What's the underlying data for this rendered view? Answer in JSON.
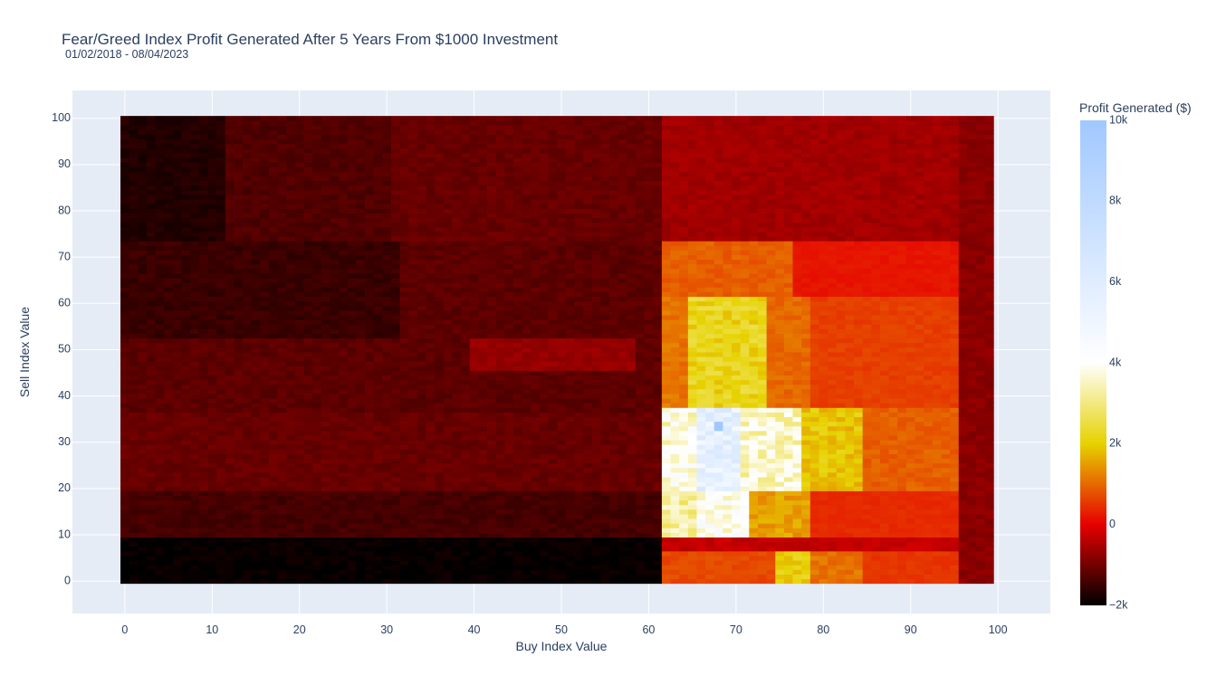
{
  "chart_data": {
    "type": "heatmap",
    "title": "Fear/Greed Index Profit Generated After 5 Years From $1000 Investment",
    "subtitle": "01/02/2018 - 08/04/2023",
    "xlabel": "Buy Index Value",
    "ylabel": "Sell Index Value",
    "xlim": [
      -6,
      106
    ],
    "ylim": [
      -7,
      106
    ],
    "x_ticks": [
      0,
      10,
      20,
      30,
      40,
      50,
      60,
      70,
      80,
      90,
      100
    ],
    "y_ticks": [
      0,
      10,
      20,
      30,
      40,
      50,
      60,
      70,
      80,
      90,
      100
    ],
    "grid": true,
    "cell_x_range": [
      0,
      99
    ],
    "cell_y_range": [
      0,
      100
    ],
    "colorbar": {
      "title": "Profit Generated ($)",
      "min": -2000,
      "max": 10000,
      "ticks": [
        -2000,
        0,
        2000,
        4000,
        6000,
        8000,
        10000
      ],
      "tick_labels": [
        "−2k",
        "0",
        "2k",
        "4k",
        "6k",
        "8k",
        "10k"
      ],
      "colorscale": [
        [
          0,
          "#000000"
        ],
        [
          0.1667,
          "#e60000"
        ],
        [
          0.3333,
          "#e6d200"
        ],
        [
          0.5,
          "#ffffff"
        ],
        [
          1,
          "#a0c8ff"
        ]
      ]
    },
    "regions": [
      {
        "x": [
          0,
          11
        ],
        "y": [
          74,
          100
        ],
        "value": -1700
      },
      {
        "x": [
          12,
          30
        ],
        "y": [
          74,
          100
        ],
        "value": -1300
      },
      {
        "x": [
          31,
          61
        ],
        "y": [
          74,
          100
        ],
        "value": -1100
      },
      {
        "x": [
          0,
          31
        ],
        "y": [
          53,
          73
        ],
        "value": -1500
      },
      {
        "x": [
          32,
          61
        ],
        "y": [
          53,
          73
        ],
        "value": -1200
      },
      {
        "x": [
          0,
          61
        ],
        "y": [
          37,
          52
        ],
        "value": -1200
      },
      {
        "x": [
          40,
          58
        ],
        "y": [
          46,
          52
        ],
        "value": -700
      },
      {
        "x": [
          0,
          61
        ],
        "y": [
          20,
          36
        ],
        "value": -1100
      },
      {
        "x": [
          0,
          61
        ],
        "y": [
          10,
          19
        ],
        "value": -1400
      },
      {
        "x": [
          0,
          61
        ],
        "y": [
          0,
          9
        ],
        "value": -1950
      },
      {
        "x": [
          62,
          95
        ],
        "y": [
          74,
          100
        ],
        "value": -600
      },
      {
        "x": [
          62,
          76
        ],
        "y": [
          62,
          73
        ],
        "value": 900
      },
      {
        "x": [
          77,
          95
        ],
        "y": [
          62,
          73
        ],
        "value": 200
      },
      {
        "x": [
          62,
          64
        ],
        "y": [
          38,
          61
        ],
        "value": 1100
      },
      {
        "x": [
          65,
          73
        ],
        "y": [
          38,
          61
        ],
        "value": 2200
      },
      {
        "x": [
          74,
          78
        ],
        "y": [
          38,
          61
        ],
        "value": 1000
      },
      {
        "x": [
          79,
          95
        ],
        "y": [
          38,
          61
        ],
        "value": 600
      },
      {
        "x": [
          62,
          65
        ],
        "y": [
          20,
          37
        ],
        "value": 3800
      },
      {
        "x": [
          66,
          70
        ],
        "y": [
          20,
          37
        ],
        "value": 5600
      },
      {
        "x": [
          71,
          77
        ],
        "y": [
          20,
          37
        ],
        "value": 3600
      },
      {
        "x": [
          78,
          84
        ],
        "y": [
          20,
          37
        ],
        "value": 1900
      },
      {
        "x": [
          85,
          95
        ],
        "y": [
          20,
          37
        ],
        "value": 900
      },
      {
        "x": [
          62,
          65
        ],
        "y": [
          10,
          19
        ],
        "value": 3200
      },
      {
        "x": [
          66,
          71
        ],
        "y": [
          10,
          19
        ],
        "value": 4000
      },
      {
        "x": [
          72,
          78
        ],
        "y": [
          10,
          19
        ],
        "value": 1500
      },
      {
        "x": [
          79,
          95
        ],
        "y": [
          10,
          19
        ],
        "value": 400
      },
      {
        "x": [
          62,
          95
        ],
        "y": [
          7,
          9
        ],
        "value": -300
      },
      {
        "x": [
          62,
          74
        ],
        "y": [
          0,
          6
        ],
        "value": 700
      },
      {
        "x": [
          75,
          78
        ],
        "y": [
          0,
          6
        ],
        "value": 2000
      },
      {
        "x": [
          79,
          84
        ],
        "y": [
          0,
          6
        ],
        "value": 1100
      },
      {
        "x": [
          85,
          95
        ],
        "y": [
          0,
          6
        ],
        "value": 500
      },
      {
        "x": [
          96,
          99
        ],
        "y": [
          0,
          100
        ],
        "value": -800
      },
      {
        "x": [
          68,
          68
        ],
        "y": [
          33,
          34
        ],
        "value": 9500
      }
    ]
  }
}
